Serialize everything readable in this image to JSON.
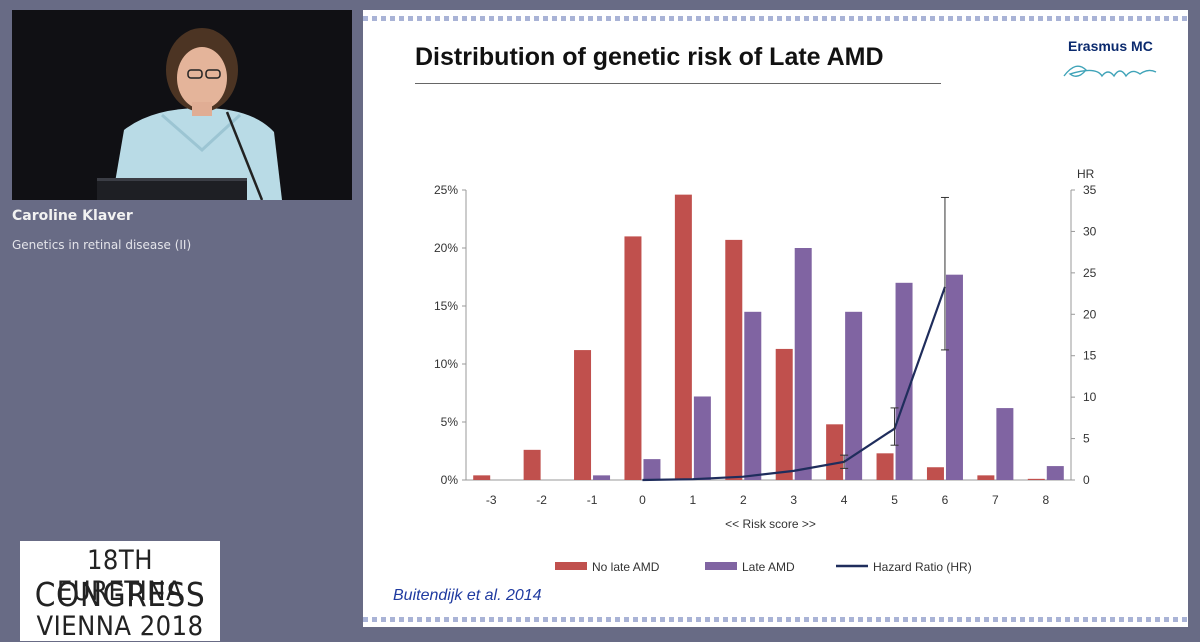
{
  "speaker": {
    "name": "Caroline Klaver",
    "talk_title": "Genetics in retinal disease (II)"
  },
  "congress_logo": {
    "line1": "18TH EURETINA",
    "line2": "CONGRESS",
    "line3": "VIENNA 2018"
  },
  "slide": {
    "title": "Distribution of genetic risk of Late AMD",
    "brand": "Erasmus MC",
    "citation": "Buitendijk et al. 2014"
  },
  "colors": {
    "no_late_amd": "#c0504d",
    "late_amd": "#8064a2",
    "hazard_ratio": "#1f2d5c",
    "background": "#686b85"
  },
  "chart_data": {
    "type": "bar",
    "categories": [
      "-3",
      "-2",
      "-1",
      "0",
      "1",
      "2",
      "3",
      "4",
      "5",
      "6",
      "7",
      "8"
    ],
    "xlabel": "<< Risk score >>",
    "ylabel_right": "HR",
    "ylim": [
      0,
      25
    ],
    "yticks": [
      "0%",
      "5%",
      "10%",
      "15%",
      "20%",
      "25%"
    ],
    "ylim_right": [
      0,
      35
    ],
    "yticks_right": [
      "0",
      "5",
      "10",
      "15",
      "20",
      "25",
      "30",
      "35"
    ],
    "legend_position": "bottom",
    "series": [
      {
        "name": "No late AMD",
        "kind": "bar",
        "values": [
          0.4,
          2.6,
          11.2,
          21.0,
          24.6,
          20.7,
          11.3,
          4.8,
          2.3,
          1.1,
          0.4,
          0.1
        ]
      },
      {
        "name": "Late AMD",
        "kind": "bar",
        "values": [
          0,
          0,
          0.4,
          1.8,
          7.2,
          14.5,
          20.0,
          14.5,
          17.0,
          17.7,
          6.2,
          1.2
        ]
      },
      {
        "name": "Hazard Ratio (HR)",
        "kind": "line",
        "axis": "right",
        "x": [
          "0",
          "1",
          "2",
          "3",
          "4",
          "5",
          "6"
        ],
        "values": [
          0,
          0.1,
          0.4,
          1.1,
          2.2,
          6.2,
          23.3
        ],
        "error_low": [
          null,
          null,
          null,
          null,
          1.4,
          4.2,
          15.7
        ],
        "error_high": [
          null,
          null,
          null,
          null,
          3.0,
          8.7,
          34.1
        ]
      }
    ]
  }
}
